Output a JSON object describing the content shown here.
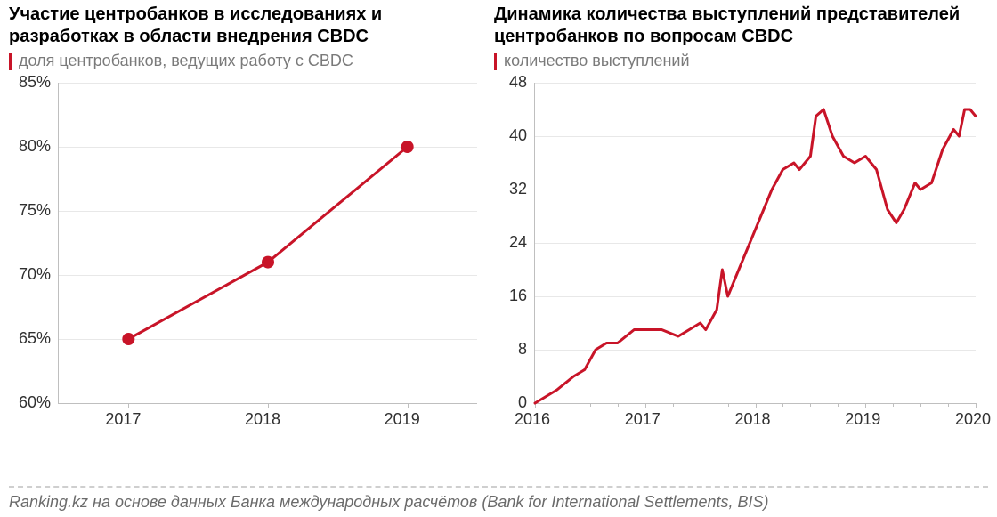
{
  "palette": {
    "background": "#ffffff",
    "text": "#000000",
    "muted": "#7a7a7a",
    "axis": "#bfbfbf",
    "grid": "#e8e8e8",
    "series": "#c81428",
    "subtitle_bar": "#c81428"
  },
  "typography": {
    "title_fontsize": 20,
    "title_weight": 700,
    "subtitle_fontsize": 18,
    "axis_label_fontsize": 18,
    "footer_fontsize": 18
  },
  "left": {
    "title": "Участие центробанков в исследованиях и разработках в области внедрения CBDC",
    "subtitle": "доля центробанков, ведущих работу с CBDC",
    "chart": {
      "type": "line",
      "x_values": [
        2017,
        2018,
        2019
      ],
      "x_labels": [
        "2017",
        "2018",
        "2019"
      ],
      "y_values": [
        65,
        71,
        80
      ],
      "y_suffix": "%",
      "ylim": [
        60,
        85
      ],
      "yticks": [
        60,
        65,
        70,
        75,
        80,
        85
      ],
      "ytick_labels": [
        "60%",
        "65%",
        "70%",
        "75%",
        "80%",
        "85%"
      ],
      "line_color": "#c81428",
      "line_width": 3,
      "marker": "circle",
      "marker_radius": 7,
      "marker_fill": "#c81428",
      "marker_stroke": "#ffffff",
      "marker_stroke_width": 0,
      "grid": true,
      "grid_color": "#e8e8e8",
      "x_tick_count": 3
    }
  },
  "right": {
    "title": "Динамика количества выступлений представителей центробанков по вопросам CBDC",
    "subtitle": "количество выступлений",
    "chart": {
      "type": "line",
      "x_range": [
        2016,
        2020
      ],
      "x_major_ticks": [
        2016,
        2017,
        2018,
        2019,
        2020
      ],
      "x_labels": [
        "2016",
        "2017",
        "2018",
        "2019",
        "2020"
      ],
      "x_minor_per_major": 4,
      "ylim": [
        0,
        48
      ],
      "yticks": [
        0,
        8,
        16,
        24,
        32,
        40,
        48
      ],
      "ytick_labels": [
        "0",
        "8",
        "16",
        "24",
        "32",
        "40",
        "48"
      ],
      "grid": true,
      "grid_color": "#e8e8e8",
      "line_color": "#c81428",
      "line_width": 3,
      "marker": "none",
      "series": [
        {
          "x": 2016.0,
          "y": 0
        },
        {
          "x": 2016.1,
          "y": 1
        },
        {
          "x": 2016.2,
          "y": 2
        },
        {
          "x": 2016.35,
          "y": 4
        },
        {
          "x": 2016.45,
          "y": 5
        },
        {
          "x": 2016.55,
          "y": 8
        },
        {
          "x": 2016.65,
          "y": 9
        },
        {
          "x": 2016.75,
          "y": 9
        },
        {
          "x": 2016.9,
          "y": 11
        },
        {
          "x": 2017.0,
          "y": 11
        },
        {
          "x": 2017.15,
          "y": 11
        },
        {
          "x": 2017.3,
          "y": 10
        },
        {
          "x": 2017.4,
          "y": 11
        },
        {
          "x": 2017.5,
          "y": 12
        },
        {
          "x": 2017.55,
          "y": 11
        },
        {
          "x": 2017.65,
          "y": 14
        },
        {
          "x": 2017.7,
          "y": 20
        },
        {
          "x": 2017.75,
          "y": 16
        },
        {
          "x": 2017.85,
          "y": 20
        },
        {
          "x": 2017.95,
          "y": 24
        },
        {
          "x": 2018.05,
          "y": 28
        },
        {
          "x": 2018.15,
          "y": 32
        },
        {
          "x": 2018.25,
          "y": 35
        },
        {
          "x": 2018.35,
          "y": 36
        },
        {
          "x": 2018.4,
          "y": 35
        },
        {
          "x": 2018.5,
          "y": 37
        },
        {
          "x": 2018.55,
          "y": 43
        },
        {
          "x": 2018.62,
          "y": 44
        },
        {
          "x": 2018.7,
          "y": 40
        },
        {
          "x": 2018.8,
          "y": 37
        },
        {
          "x": 2018.9,
          "y": 36
        },
        {
          "x": 2019.0,
          "y": 37
        },
        {
          "x": 2019.1,
          "y": 35
        },
        {
          "x": 2019.2,
          "y": 29
        },
        {
          "x": 2019.28,
          "y": 27
        },
        {
          "x": 2019.35,
          "y": 29
        },
        {
          "x": 2019.45,
          "y": 33
        },
        {
          "x": 2019.5,
          "y": 32
        },
        {
          "x": 2019.6,
          "y": 33
        },
        {
          "x": 2019.7,
          "y": 38
        },
        {
          "x": 2019.8,
          "y": 41
        },
        {
          "x": 2019.85,
          "y": 40
        },
        {
          "x": 2019.9,
          "y": 44
        },
        {
          "x": 2019.95,
          "y": 44
        },
        {
          "x": 2020.0,
          "y": 43
        }
      ]
    }
  },
  "footer": "Ranking.kz на основе данных Банка международных расчётов (Bank for International Settlements, BIS)"
}
